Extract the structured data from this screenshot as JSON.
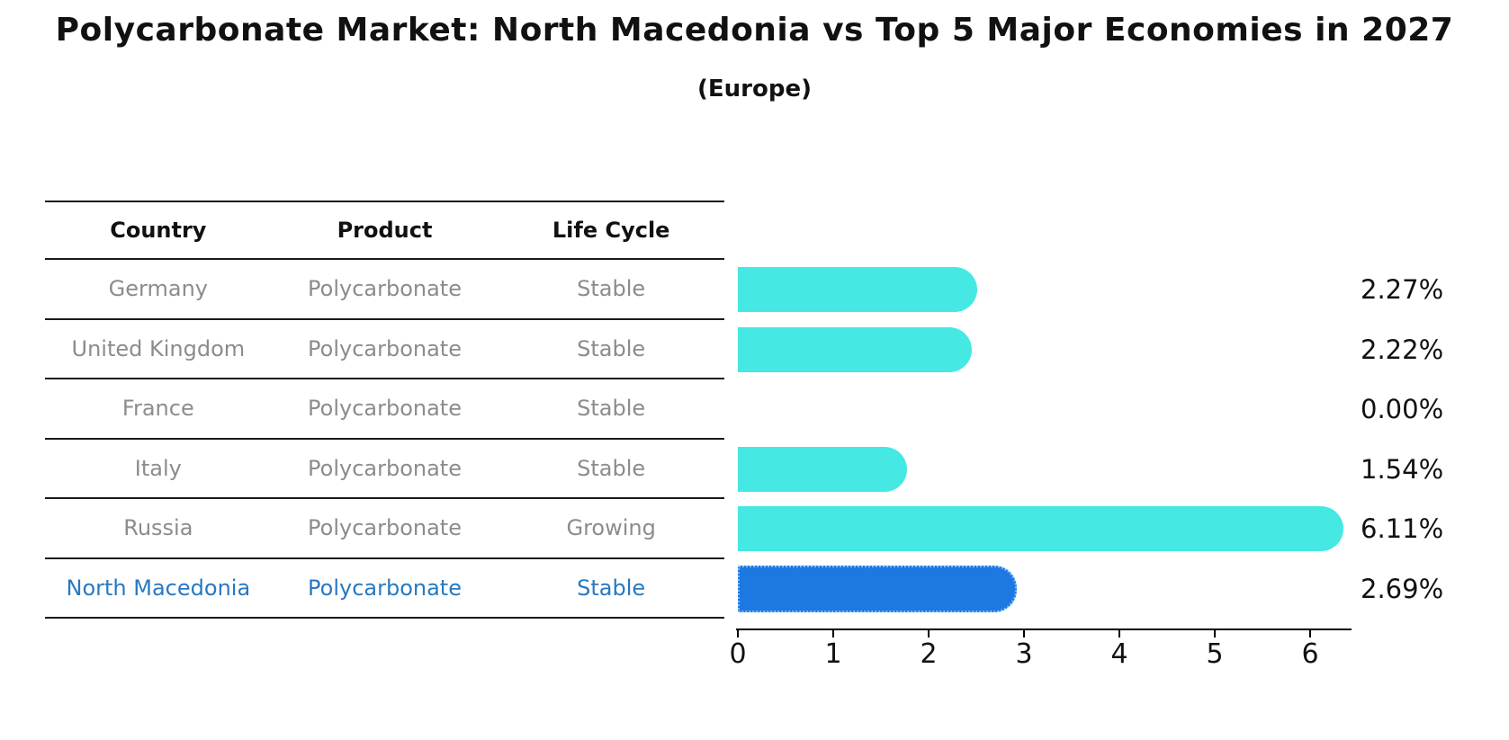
{
  "title": "Polycarbonate Market: North Macedonia vs Top 5 Major Economies in 2027",
  "subtitle": "(Europe)",
  "colors": {
    "bar": "#45e8e2",
    "highlight_bar": "#1e78e2",
    "highlight_edge": "#7cc0f8",
    "highlight_text": "#2879c0",
    "row_text": "#8c8c8c"
  },
  "table": {
    "headers": [
      "Country",
      "Product",
      "Life Cycle"
    ],
    "rows": [
      {
        "country": "Germany",
        "product": "Polycarbonate",
        "life_cycle": "Stable",
        "highlight": false
      },
      {
        "country": "United Kingdom",
        "product": "Polycarbonate",
        "life_cycle": "Stable",
        "highlight": false
      },
      {
        "country": "France",
        "product": "Polycarbonate",
        "life_cycle": "Stable",
        "highlight": false
      },
      {
        "country": "Italy",
        "product": "Polycarbonate",
        "life_cycle": "Stable",
        "highlight": false
      },
      {
        "country": "Russia",
        "product": "Polycarbonate",
        "life_cycle": "Growing",
        "highlight": false
      },
      {
        "country": "North Macedonia",
        "product": "Polycarbonate",
        "life_cycle": "Stable",
        "highlight": true
      }
    ]
  },
  "chart_data": {
    "type": "bar",
    "orientation": "horizontal",
    "title": "Polycarbonate Market: North Macedonia vs Top 5 Major Economies in 2027 (Europe)",
    "categories": [
      "Germany",
      "United Kingdom",
      "France",
      "Italy",
      "Russia",
      "North Macedonia"
    ],
    "values": [
      2.27,
      2.22,
      0.0,
      1.54,
      6.11,
      2.69
    ],
    "value_labels": [
      "2.27%",
      "2.22%",
      "0.00%",
      "1.54%",
      "6.11%",
      "2.69%"
    ],
    "highlight_index": 5,
    "xlabel": "",
    "ylabel": "",
    "xlim": [
      0,
      6.45
    ],
    "xticks": [
      0,
      1,
      2,
      3,
      4,
      5,
      6
    ],
    "grid": false,
    "legend": false
  }
}
